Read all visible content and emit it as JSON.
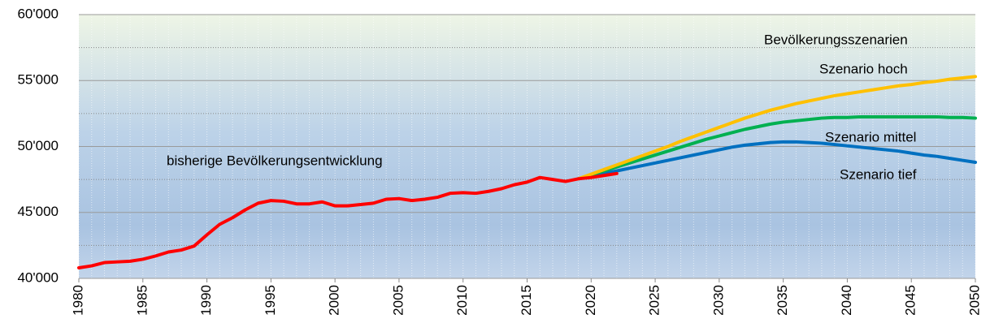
{
  "chart_data": {
    "type": "line",
    "x": [
      1980,
      1981,
      1982,
      1983,
      1984,
      1985,
      1986,
      1987,
      1988,
      1989,
      1990,
      1991,
      1992,
      1993,
      1994,
      1995,
      1996,
      1997,
      1998,
      1999,
      2000,
      2001,
      2002,
      2003,
      2004,
      2005,
      2006,
      2007,
      2008,
      2009,
      2010,
      2011,
      2012,
      2013,
      2014,
      2015,
      2016,
      2017,
      2018,
      2019,
      2020,
      2021,
      2022,
      2023,
      2024,
      2025,
      2026,
      2027,
      2028,
      2029,
      2030,
      2031,
      2032,
      2033,
      2034,
      2035,
      2036,
      2037,
      2038,
      2039,
      2040,
      2041,
      2042,
      2043,
      2044,
      2045,
      2046,
      2047,
      2048,
      2049,
      2050
    ],
    "series": [
      {
        "name": "bisherige Bevölkerungsentwicklung",
        "color": "#ff0000",
        "values": [
          40800,
          40950,
          41200,
          41250,
          41300,
          41450,
          41700,
          42000,
          42150,
          42450,
          43300,
          44100,
          44600,
          45200,
          45700,
          45900,
          45850,
          45650,
          45650,
          45800,
          45500,
          45500,
          45600,
          45700,
          46000,
          46050,
          45900,
          46000,
          46150,
          46450,
          46500,
          46450,
          46600,
          46800,
          47100,
          47300,
          47650,
          47500,
          47350,
          47550,
          47650,
          47800,
          47950,
          null,
          null,
          null,
          null,
          null,
          null,
          null,
          null,
          null,
          null,
          null,
          null,
          null,
          null,
          null,
          null,
          null,
          null,
          null,
          null,
          null,
          null,
          null,
          null,
          null,
          null,
          null,
          null
        ]
      },
      {
        "name": "Szenario hoch",
        "color": "#ffc000",
        "values": [
          null,
          null,
          null,
          null,
          null,
          null,
          null,
          null,
          null,
          null,
          null,
          null,
          null,
          null,
          null,
          null,
          null,
          null,
          null,
          null,
          null,
          null,
          null,
          null,
          null,
          null,
          null,
          null,
          null,
          null,
          null,
          null,
          null,
          null,
          null,
          null,
          null,
          null,
          null,
          47550,
          47900,
          48250,
          48600,
          48950,
          49300,
          49650,
          50000,
          50400,
          50750,
          51100,
          51450,
          51800,
          52150,
          52450,
          52750,
          53000,
          53250,
          53450,
          53650,
          53850,
          54000,
          54150,
          54300,
          54450,
          54600,
          54700,
          54850,
          54950,
          55100,
          55200,
          55300
        ]
      },
      {
        "name": "Szenario mittel",
        "color": "#00b050",
        "values": [
          null,
          null,
          null,
          null,
          null,
          null,
          null,
          null,
          null,
          null,
          null,
          null,
          null,
          null,
          null,
          null,
          null,
          null,
          null,
          null,
          null,
          null,
          null,
          null,
          null,
          null,
          null,
          null,
          null,
          null,
          null,
          null,
          null,
          null,
          null,
          null,
          null,
          null,
          null,
          47550,
          47850,
          48150,
          48450,
          48750,
          49050,
          49350,
          49650,
          49950,
          50250,
          50550,
          50800,
          51050,
          51300,
          51500,
          51700,
          51850,
          51950,
          52050,
          52150,
          52200,
          52200,
          52250,
          52250,
          52250,
          52250,
          52250,
          52250,
          52250,
          52200,
          52200,
          52150
        ]
      },
      {
        "name": "Szenario tief",
        "color": "#0070c0",
        "values": [
          null,
          null,
          null,
          null,
          null,
          null,
          null,
          null,
          null,
          null,
          null,
          null,
          null,
          null,
          null,
          null,
          null,
          null,
          null,
          null,
          null,
          null,
          null,
          null,
          null,
          null,
          null,
          null,
          null,
          null,
          null,
          null,
          null,
          null,
          null,
          null,
          null,
          null,
          null,
          47550,
          47750,
          47950,
          48150,
          48350,
          48550,
          48750,
          48950,
          49150,
          49350,
          49550,
          49750,
          49950,
          50100,
          50200,
          50300,
          50350,
          50350,
          50300,
          50250,
          50150,
          50050,
          49950,
          49850,
          49750,
          49650,
          49500,
          49350,
          49250,
          49100,
          48950,
          48800
        ]
      }
    ],
    "annotations": [
      "Bevölkerungsszenarien"
    ],
    "xlim": [
      1980,
      2050
    ],
    "xticks": [
      1980,
      1985,
      1990,
      1995,
      2000,
      2005,
      2010,
      2015,
      2020,
      2025,
      2030,
      2035,
      2040,
      2045,
      2050
    ],
    "ylim": [
      40000,
      60000
    ],
    "yticks": [
      {
        "value": 40000,
        "label": "40'000"
      },
      {
        "value": 45000,
        "label": "45'000"
      },
      {
        "value": 50000,
        "label": "50'000"
      },
      {
        "value": 55000,
        "label": "55'000"
      },
      {
        "value": 60000,
        "label": "60'000"
      }
    ],
    "y_minor_ticks": [
      42500,
      47500,
      52500,
      57500
    ],
    "grid": true
  }
}
